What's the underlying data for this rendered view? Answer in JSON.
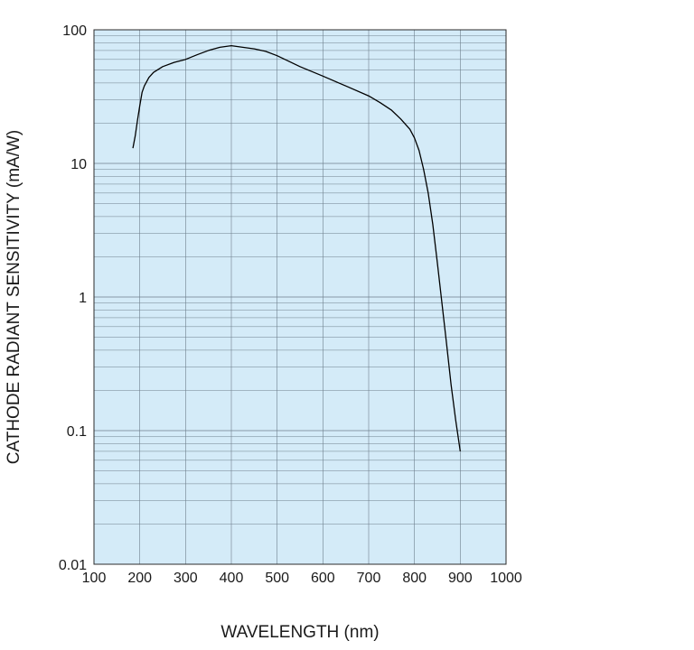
{
  "chart_data": {
    "type": "line",
    "title": "",
    "xlabel": "WAVELENGTH (nm)",
    "ylabel": "CATHODE RADIANT SENSITIVITY (mA/W)",
    "xlim": [
      100,
      1000
    ],
    "ylim": [
      0.01,
      100
    ],
    "yscale": "log",
    "grid": true,
    "plot_background": "#d4ebf8",
    "grid_color": "#6e7f8c",
    "line_color": "#000000",
    "x_ticks": [
      100,
      200,
      300,
      400,
      500,
      600,
      700,
      800,
      900,
      1000
    ],
    "x_tick_labels": [
      "100",
      "200",
      "300",
      "400",
      "500",
      "600",
      "700",
      "800",
      "900",
      "1000"
    ],
    "y_ticks": [
      0.01,
      0.1,
      1,
      10,
      100
    ],
    "y_tick_labels": [
      "0.01",
      "0.1",
      "1",
      "10",
      "100"
    ],
    "series": [
      {
        "x": [
          185,
          190,
          195,
          200,
          205,
          210,
          220,
          230,
          250,
          275,
          300,
          325,
          350,
          375,
          400,
          425,
          450,
          475,
          500,
          550,
          600,
          650,
          700,
          725,
          750,
          770,
          790,
          800,
          810,
          820,
          830,
          840,
          850,
          860,
          870,
          880,
          890,
          900
        ],
        "y": [
          13,
          16,
          21,
          27,
          34,
          38,
          44,
          48,
          53,
          57,
          60,
          65,
          70,
          74,
          76,
          74,
          72,
          69,
          64,
          53,
          45,
          38,
          32,
          28.5,
          25,
          21.5,
          18,
          15.5,
          12.5,
          9,
          6,
          3.5,
          1.8,
          0.9,
          0.45,
          0.22,
          0.12,
          0.07
        ]
      }
    ]
  }
}
